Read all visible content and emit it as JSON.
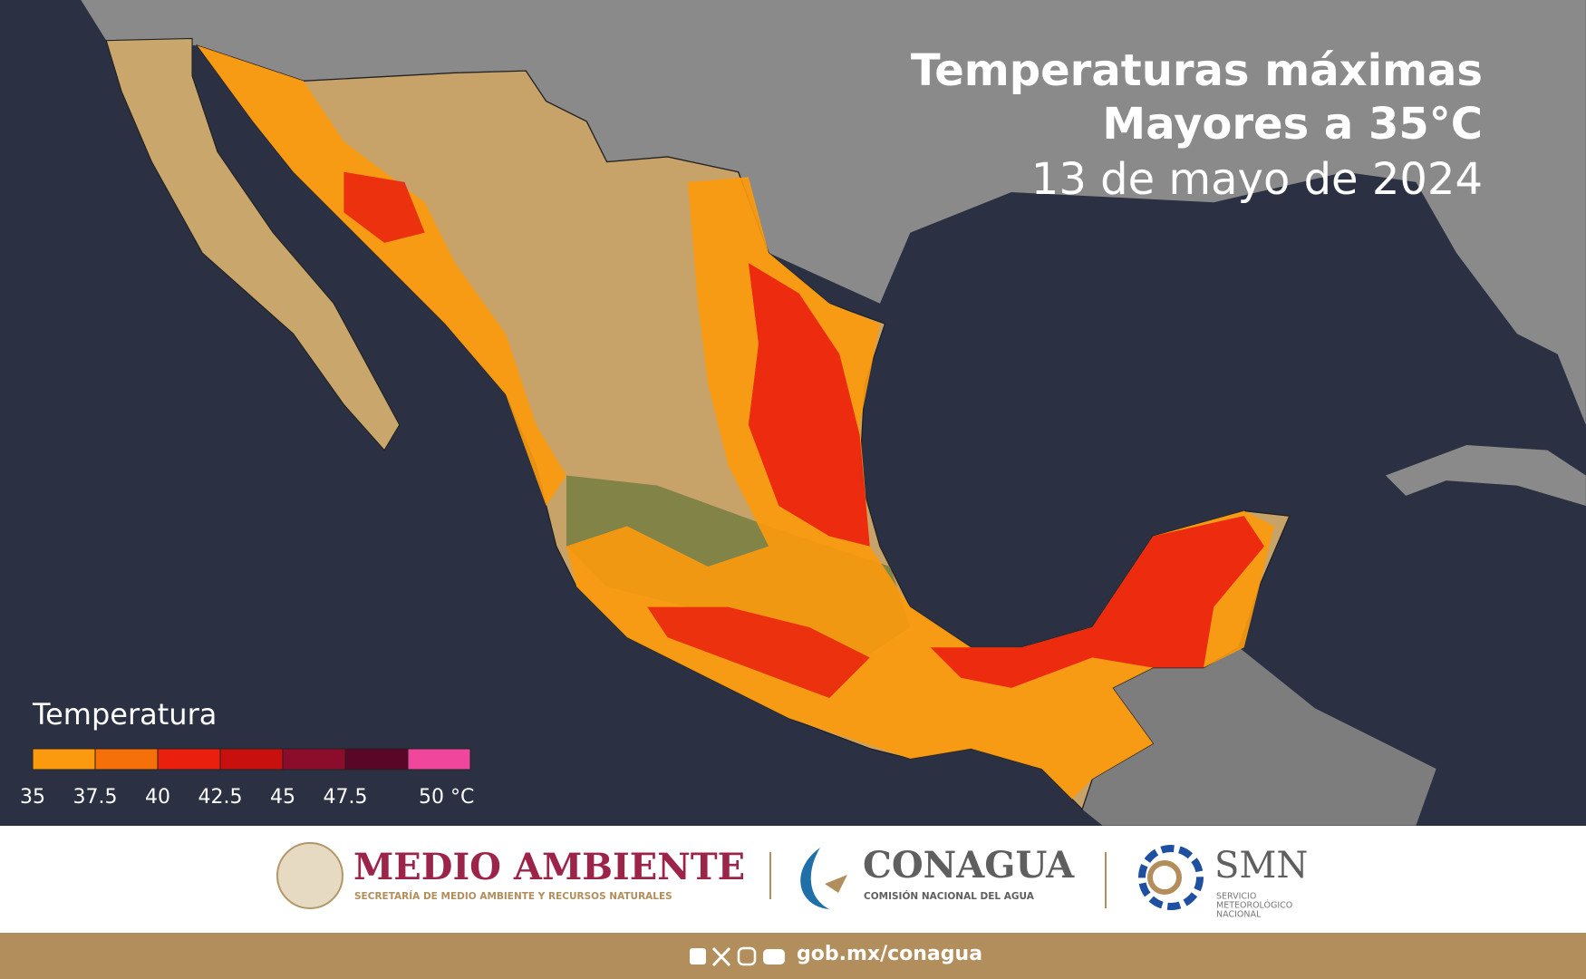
{
  "header": {
    "title_line1": "Temperaturas máximas",
    "title_line2": "Mayores a 35°C",
    "date": "13 de mayo de 2024"
  },
  "legend": {
    "title": "Temperatura",
    "colors": [
      "#fb9a0e",
      "#f6700a",
      "#ea1f0e",
      "#c8100e",
      "#8c0c2c",
      "#5a0626",
      "#f0479c"
    ],
    "labels": [
      "35",
      "37.5",
      "40",
      "42.5",
      "45",
      "47.5",
      "50 °C"
    ]
  },
  "logos": {
    "medio_ambiente": "MEDIO AMBIENTE",
    "medio_ambiente_sub": "SECRETARÍA DE MEDIO AMBIENTE Y RECURSOS NATURALES",
    "conagua": "CONAGUA",
    "conagua_sub": "COMISIÓN NACIONAL DEL AGUA",
    "smn": "SMN",
    "smn_sub1": "SERVICIO",
    "smn_sub2": "METEOROLÓGICO",
    "smn_sub3": "NACIONAL"
  },
  "footer": {
    "url": "gob.mx/conagua"
  }
}
